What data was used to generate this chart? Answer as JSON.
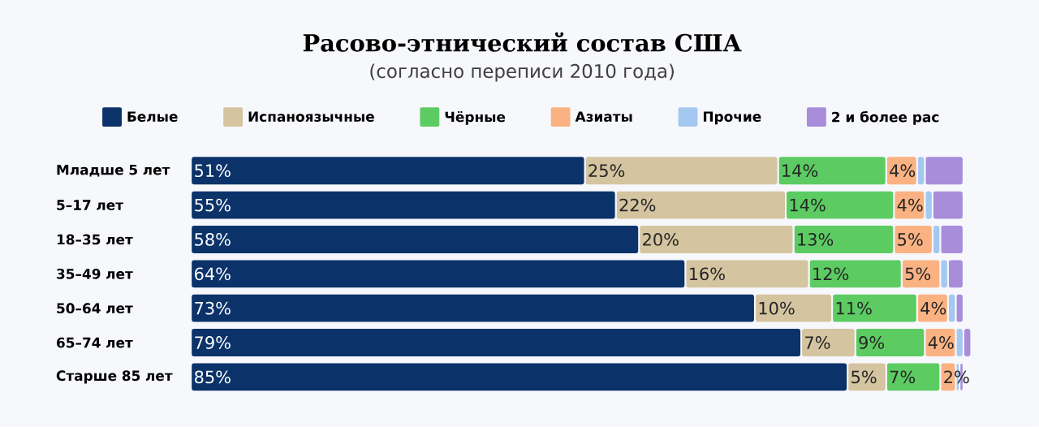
{
  "chart_data": {
    "type": "bar",
    "orientation": "horizontal",
    "stacked": true,
    "title": "Расово-этнический состав США",
    "subtitle": "(согласно переписи 2010 года)",
    "categories": [
      "Младше 5 лет",
      "5–17 лет",
      "18–35 лет",
      "35–49 лет",
      "50–64 лет",
      "65–74 лет",
      "Старше 85 лет"
    ],
    "series": [
      {
        "name": "Белые",
        "color": "#0b3369",
        "values": [
          51,
          55,
          58,
          64,
          73,
          79,
          85
        ],
        "value_labels": [
          "51%",
          "55%",
          "58%",
          "64%",
          "73%",
          "79%",
          "85%"
        ]
      },
      {
        "name": "Испаноязычные",
        "color": "#d4c4a0",
        "values": [
          25,
          22,
          20,
          16,
          10,
          7,
          5
        ],
        "value_labels": [
          "25%",
          "22%",
          "20%",
          "16%",
          "10%",
          "7%",
          "5%"
        ]
      },
      {
        "name": "Чёрные",
        "color": "#5ccc62",
        "values": [
          14,
          14,
          13,
          12,
          11,
          9,
          7
        ],
        "value_labels": [
          "14%",
          "14%",
          "13%",
          "12%",
          "11%",
          "9%",
          "7%"
        ]
      },
      {
        "name": "Азиаты",
        "color": "#fbb282",
        "values": [
          4,
          4,
          5,
          5,
          4,
          4,
          2
        ],
        "value_labels": [
          "4%",
          "4%",
          "5%",
          "5%",
          "4%",
          "4%",
          "2%"
        ]
      },
      {
        "name": "Прочие",
        "color": "#a4c8f0",
        "values": [
          1,
          1,
          1,
          1,
          1,
          1,
          0.5
        ]
      },
      {
        "name": "2 и более рас",
        "color": "#a88ddb",
        "values": [
          5,
          4,
          3,
          2,
          1,
          1,
          0.5
        ]
      }
    ],
    "legend": "top",
    "tick_labels": "y"
  }
}
